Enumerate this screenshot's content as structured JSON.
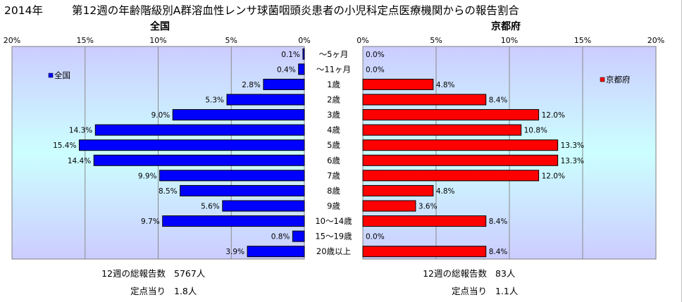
{
  "header": {
    "year": "2014年",
    "title": "第12週の年齢階級別A群溶血性レンサ球菌咽頭炎患者の小児科定点医療機関からの報告割合"
  },
  "chart_data": {
    "type": "bar",
    "orientation": "horizontal-back-to-back",
    "categories": [
      "～5ヶ月",
      "～11ヶ月",
      "1歳",
      "2歳",
      "3歳",
      "4歳",
      "5歳",
      "6歳",
      "7歳",
      "8歳",
      "9歳",
      "10～14歳",
      "15～19歳",
      "20歳以上"
    ],
    "series": [
      {
        "name": "全国",
        "panel_title": "全国",
        "values": [
          0.1,
          0.4,
          2.8,
          5.3,
          9.0,
          14.3,
          15.4,
          14.4,
          9.9,
          8.5,
          5.6,
          9.7,
          0.8,
          3.9
        ],
        "labels": [
          "0.1%",
          "0.4%",
          "2.8%",
          "5.3%",
          "9.0%",
          "14.3%",
          "15.4%",
          "14.4%",
          "9.9%",
          "8.5%",
          "5.6%",
          "9.7%",
          "0.8%",
          "3.9%"
        ],
        "color": "#0000ff",
        "xlim": [
          0,
          20
        ],
        "direction": "reversed",
        "ticks": [
          "20%",
          "15%",
          "10%",
          "5%",
          "0%"
        ],
        "legend_position": "top-left"
      },
      {
        "name": "京都府",
        "panel_title": "京都府",
        "values": [
          0.0,
          0.0,
          4.8,
          8.4,
          12.0,
          10.8,
          13.3,
          13.3,
          12.0,
          4.8,
          3.6,
          8.4,
          0.0,
          8.4
        ],
        "labels": [
          "0.0%",
          "0.0%",
          "4.8%",
          "8.4%",
          "12.0%",
          "10.8%",
          "13.3%",
          "13.3%",
          "12.0%",
          "4.8%",
          "3.6%",
          "8.4%",
          "0.0%",
          "8.4%"
        ],
        "color": "#ff0000",
        "xlim": [
          0,
          20
        ],
        "direction": "normal",
        "ticks": [
          "0%",
          "5%",
          "10%",
          "15%",
          "20%"
        ],
        "legend_position": "top-right"
      }
    ],
    "grid": true,
    "plot_background": "gradient #ccccff to #ccffff",
    "bar_border_color": "#000000"
  },
  "footer": {
    "national": {
      "total_label": "12週の総報告数",
      "total_value": "5767人",
      "per_label": "定点当り",
      "per_value": "1.8人"
    },
    "kyoto": {
      "total_label": "12週の総報告数",
      "total_value": "83人",
      "per_label": "定点当り",
      "per_value": "1.1人"
    }
  }
}
